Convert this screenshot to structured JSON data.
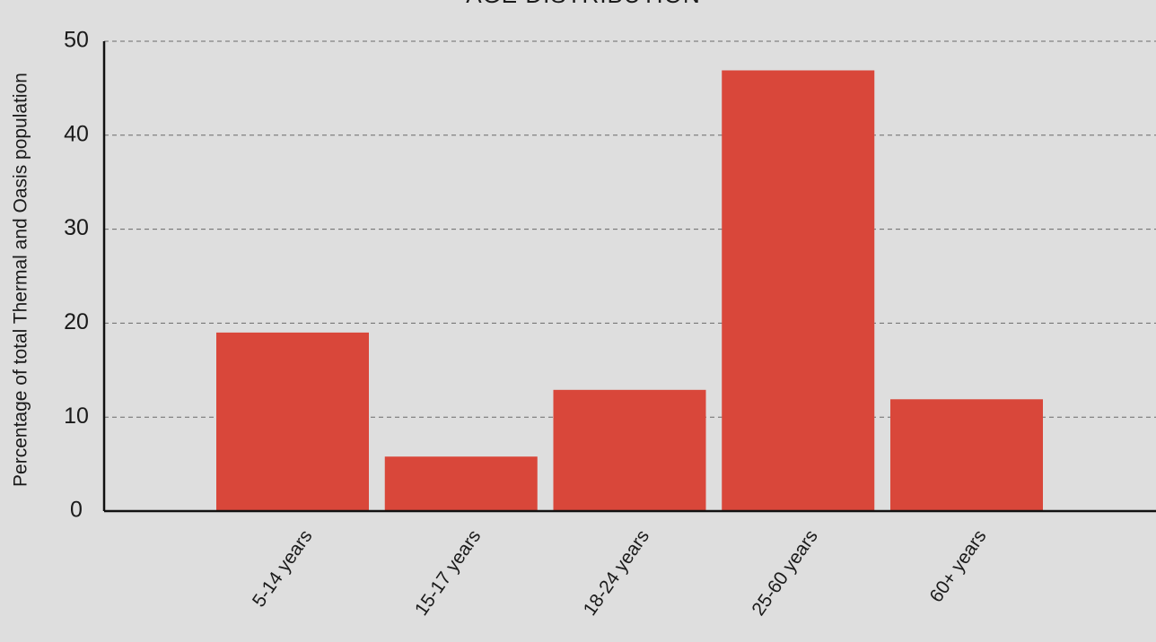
{
  "chart_data": {
    "type": "bar",
    "title": "AGE DISTRIBUTION",
    "y_label": "Percentage of total Thermal and Oasis population",
    "categories": [
      "5-14 years",
      "15-17 years",
      "18-24 years",
      "25-60 years",
      "60+ years"
    ],
    "values": [
      19,
      5.8,
      12.9,
      46.9,
      11.9
    ],
    "color": "#d9473a",
    "ylim": [
      0,
      50
    ],
    "yticks": [
      0,
      10,
      20,
      30,
      40,
      50
    ],
    "grid": true
  }
}
